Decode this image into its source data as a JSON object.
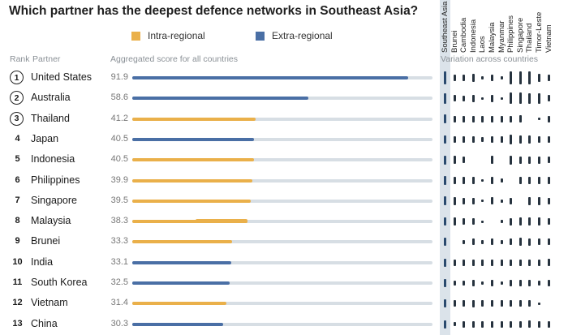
{
  "title": "Which partner has the deepest defence networks in Southeast Asia?",
  "legend": {
    "intra_label": "Intra-regional",
    "extra_label": "Extra-regional",
    "intra_color": "#eab04a",
    "extra_color": "#4a6fa5"
  },
  "headers": {
    "rank": "Rank",
    "partner": "Partner",
    "score": "Aggregated score for all countries",
    "variation": "Variation across countries"
  },
  "columns": [
    "Southeast Asia",
    "Brunei",
    "Cambodia",
    "Indonesia",
    "Laos",
    "Malaysia",
    "Myanmar",
    "Philippines",
    "Singapore",
    "Thailand",
    "Timor-Leste",
    "Vietnam"
  ],
  "chart_data": {
    "type": "bar",
    "title": "Which partner has the deepest defence networks in Southeast Asia?",
    "xlim": [
      0,
      100
    ],
    "rows": [
      {
        "rank": "1",
        "circled": true,
        "partner": "United States",
        "score": "91.9",
        "value": 91.9,
        "group": "extra",
        "split": null,
        "variation": [
          0.9,
          0.45,
          0.45,
          0.55,
          0.2,
          0.45,
          0.2,
          0.9,
          0.9,
          0.9,
          0.6,
          0.45
        ]
      },
      {
        "rank": "2",
        "circled": true,
        "partner": "Australia",
        "score": "58.6",
        "value": 58.6,
        "group": "extra",
        "split": null,
        "variation": [
          0.75,
          0.45,
          0.4,
          0.5,
          0.2,
          0.5,
          0.2,
          0.8,
          0.8,
          0.7,
          0.75,
          0.45
        ]
      },
      {
        "rank": "3",
        "circled": true,
        "partner": "Thailand",
        "score": "41.2",
        "value": 41.2,
        "group": "intra",
        "split": null,
        "variation": [
          0.6,
          0.45,
          0.45,
          0.45,
          0.45,
          0.45,
          0.45,
          0.45,
          0.5,
          0.0,
          0.2,
          0.45
        ]
      },
      {
        "rank": "4",
        "circled": false,
        "partner": "Japan",
        "score": "40.5",
        "value": 40.5,
        "group": "extra",
        "split": null,
        "variation": [
          0.6,
          0.45,
          0.45,
          0.45,
          0.3,
          0.45,
          0.45,
          0.7,
          0.55,
          0.55,
          0.45,
          0.45
        ]
      },
      {
        "rank": "5",
        "circled": false,
        "partner": "Indonesia",
        "score": "40.5",
        "value": 40.5,
        "group": "intra",
        "split": null,
        "variation": [
          0.6,
          0.55,
          0.45,
          0.0,
          0.0,
          0.55,
          0.0,
          0.6,
          0.5,
          0.5,
          0.5,
          0.45
        ]
      },
      {
        "rank": "6",
        "circled": false,
        "partner": "Philippines",
        "score": "39.9",
        "value": 39.9,
        "group": "intra",
        "split": null,
        "variation": [
          0.6,
          0.55,
          0.45,
          0.45,
          0.2,
          0.45,
          0.3,
          0.0,
          0.55,
          0.55,
          0.45,
          0.45
        ]
      },
      {
        "rank": "7",
        "circled": false,
        "partner": "Singapore",
        "score": "39.5",
        "value": 39.5,
        "group": "intra",
        "split": null,
        "variation": [
          0.6,
          0.55,
          0.45,
          0.45,
          0.1,
          0.5,
          0.2,
          0.45,
          0.0,
          0.55,
          0.55,
          0.45
        ]
      },
      {
        "rank": "8",
        "circled": false,
        "partner": "Malaysia",
        "score": "38.3",
        "value": 38.3,
        "group": "intra",
        "split": 21.0,
        "variation": [
          0.6,
          0.55,
          0.45,
          0.45,
          0.15,
          0.0,
          0.2,
          0.5,
          0.55,
          0.55,
          0.55,
          0.45
        ]
      },
      {
        "rank": "9",
        "circled": false,
        "partner": "Brunei",
        "score": "33.3",
        "value": 33.3,
        "group": "intra",
        "split": null,
        "variation": [
          0.55,
          0.0,
          0.3,
          0.45,
          0.3,
          0.45,
          0.25,
          0.45,
          0.55,
          0.5,
          0.45,
          0.45
        ]
      },
      {
        "rank": "10",
        "circled": false,
        "partner": "India",
        "score": "33.1",
        "value": 33.1,
        "group": "extra",
        "split": null,
        "variation": [
          0.55,
          0.45,
          0.45,
          0.45,
          0.45,
          0.45,
          0.45,
          0.45,
          0.45,
          0.45,
          0.45,
          0.5
        ]
      },
      {
        "rank": "11",
        "circled": false,
        "partner": "South Korea",
        "score": "32.5",
        "value": 32.5,
        "group": "extra",
        "split": null,
        "variation": [
          0.55,
          0.35,
          0.3,
          0.45,
          0.25,
          0.45,
          0.25,
          0.45,
          0.4,
          0.45,
          0.3,
          0.45
        ]
      },
      {
        "rank": "12",
        "circled": false,
        "partner": "Vietnam",
        "score": "31.4",
        "value": 31.4,
        "group": "intra",
        "split": null,
        "variation": [
          0.55,
          0.45,
          0.45,
          0.5,
          0.45,
          0.45,
          0.45,
          0.45,
          0.45,
          0.45,
          0.2,
          0.0
        ]
      },
      {
        "rank": "13",
        "circled": false,
        "partner": "China",
        "score": "30.3",
        "value": 30.3,
        "group": "extra",
        "split": null,
        "variation": [
          0.55,
          0.3,
          0.45,
          0.45,
          0.45,
          0.45,
          0.45,
          0.45,
          0.45,
          0.5,
          0.45,
          0.45
        ]
      }
    ]
  }
}
